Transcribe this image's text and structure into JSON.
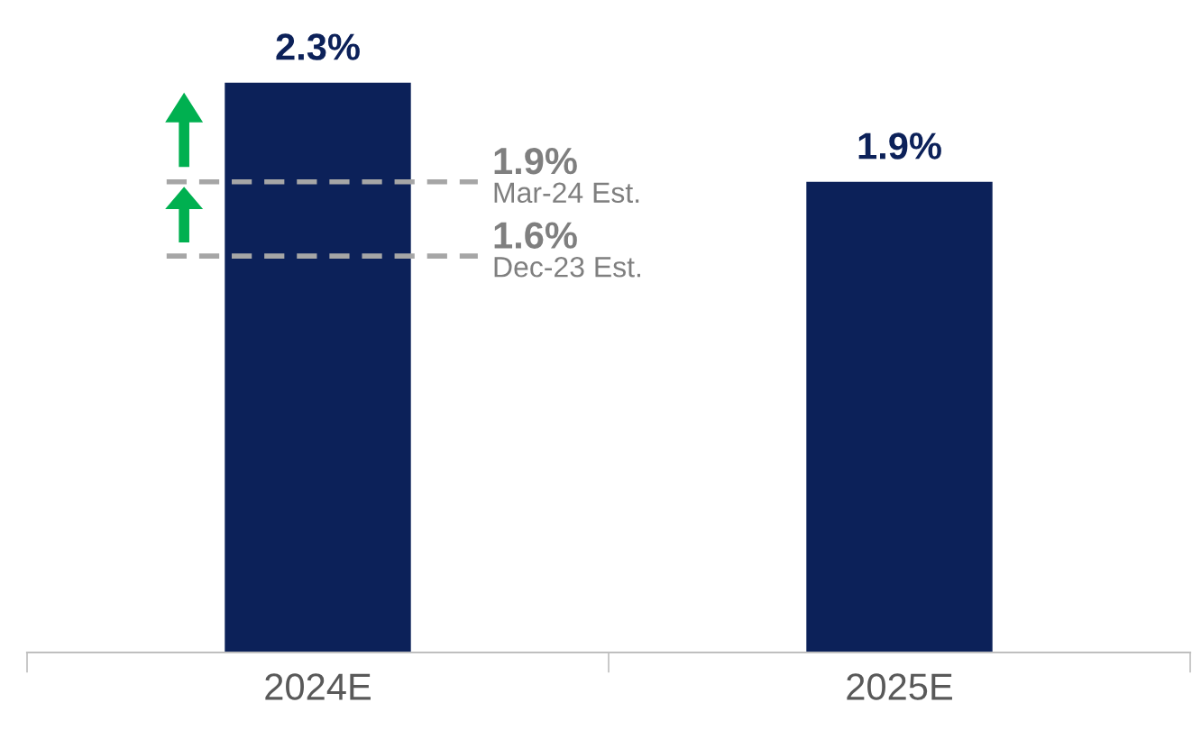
{
  "chart_data": {
    "type": "bar",
    "categories": [
      "2024E",
      "2025E"
    ],
    "values": [
      2.3,
      1.9
    ],
    "color": "#0c2159",
    "data_labels": true,
    "value_labels": [
      "2.3%",
      "1.9%"
    ],
    "ref_lines": [
      {
        "axis": "y",
        "value": 1.9,
        "label": "1.9%\nMar-24 Est.",
        "color": "#a6a6a6",
        "line_style": "dashed"
      },
      {
        "axis": "y",
        "value": 1.6,
        "label": "1.6%\nDec-23 Est.",
        "color": "#a6a6a6",
        "line_style": "dashed"
      }
    ],
    "grid": false
  }
}
